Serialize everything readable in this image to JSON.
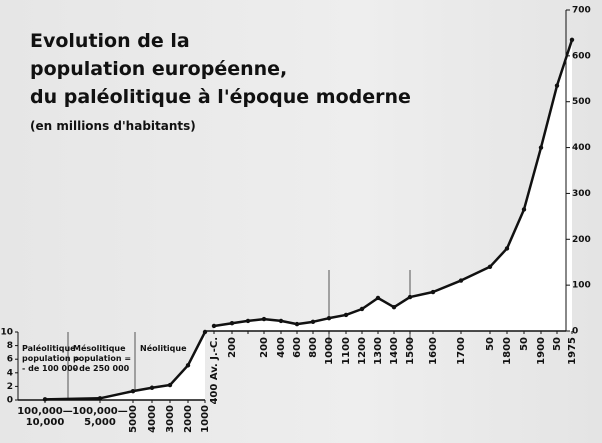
{
  "chart_data": [
    {
      "type": "line",
      "categories": [
        "100,000— 10,000",
        "100,000— 5,000",
        "5000",
        "4000",
        "3000",
        "2000",
        "1000"
      ],
      "values": [
        0.1,
        0.25,
        1.3,
        1.8,
        2.2,
        5.1,
        10
      ],
      "color": "#111111",
      "ylim": [
        0,
        10
      ],
      "yticks": [
        0,
        2,
        4,
        6,
        8,
        10
      ],
      "annotations": [
        [
          "Paléolitique",
          "population =",
          "- de 100 000"
        ],
        [
          "Mésolitique",
          "population =",
          "- de 250 000"
        ],
        [
          "Néolitique"
        ]
      ]
    },
    {
      "type": "line",
      "title": [
        "Evolution de la",
        "population européenne,",
        "du paléolitique à l'époque moderne"
      ],
      "subtitle": "(en millions d'habitants)",
      "categories": [
        "400 Av. J.-C.",
        "200",
        null,
        "200",
        "400",
        "600",
        "800",
        "1000",
        "1100",
        "1200",
        "1300",
        "1400",
        "1500",
        "1600",
        "1700",
        "50",
        "1800",
        "50",
        "1900",
        "50",
        "1975"
      ],
      "values": [
        11,
        17,
        22,
        26,
        22,
        15,
        20,
        28,
        35,
        48,
        72,
        52,
        74,
        85,
        110,
        140,
        180,
        265,
        400,
        535,
        635
      ],
      "color": "#111111",
      "ylim": [
        0,
        700
      ],
      "yticks": [
        0,
        100,
        200,
        300,
        400,
        500,
        600,
        700
      ]
    }
  ]
}
